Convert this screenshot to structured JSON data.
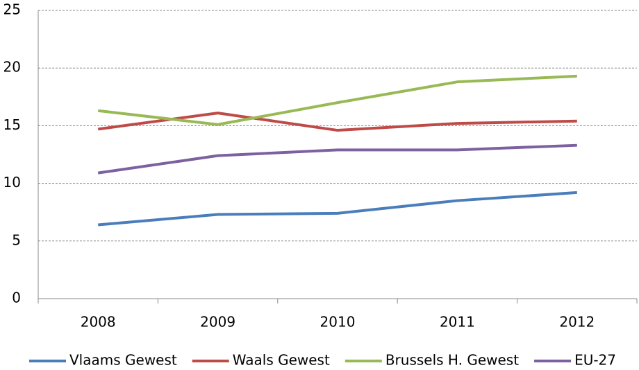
{
  "chart_data": {
    "type": "line",
    "categories": [
      "2008",
      "2009",
      "2010",
      "2011",
      "2012"
    ],
    "series": [
      {
        "name": "Vlaams Gewest",
        "color": "#4a7ebb",
        "values": [
          6.4,
          7.3,
          7.4,
          8.5,
          9.2
        ]
      },
      {
        "name": "Waals Gewest",
        "color": "#be4b48",
        "values": [
          14.7,
          16.1,
          14.6,
          15.2,
          15.4
        ]
      },
      {
        "name": "Brussels H. Gewest",
        "color": "#98b954",
        "values": [
          16.3,
          15.1,
          17.0,
          18.8,
          19.3
        ]
      },
      {
        "name": "EU-27",
        "color": "#7d60a0",
        "values": [
          10.9,
          12.4,
          12.9,
          12.9,
          13.3
        ]
      }
    ],
    "ylim": [
      0,
      25
    ],
    "yticks": [
      0,
      5,
      10,
      15,
      20,
      25
    ],
    "grid": true,
    "legend": "bottom"
  }
}
